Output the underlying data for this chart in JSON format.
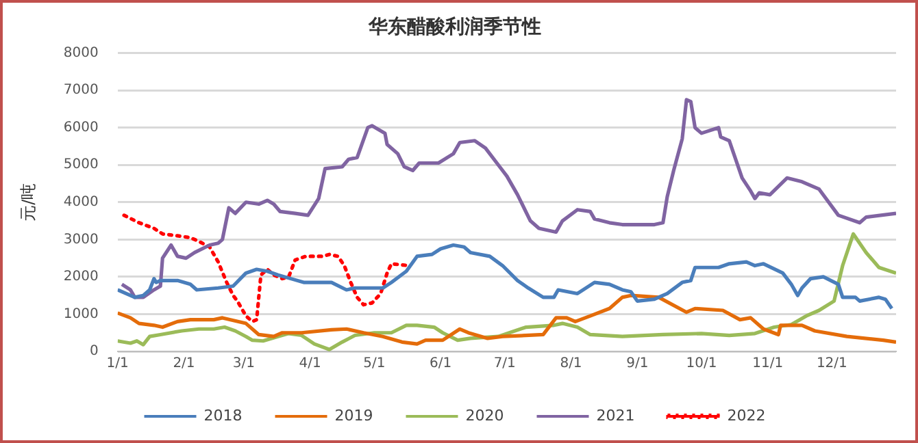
{
  "chart_data": {
    "type": "line",
    "title": "华东醋酸利润季节性",
    "ylabel": "元/吨",
    "xlim": [
      "--01-01",
      "--12-31"
    ],
    "xticks": [
      {
        "value": "--01-01",
        "label": "1/1"
      },
      {
        "value": "--02-01",
        "label": "2/1"
      },
      {
        "value": "--03-01",
        "label": "3/1"
      },
      {
        "value": "--04-01",
        "label": "4/1"
      },
      {
        "value": "--05-01",
        "label": "5/1"
      },
      {
        "value": "--06-01",
        "label": "6/1"
      },
      {
        "value": "--07-01",
        "label": "7/1"
      },
      {
        "value": "--08-01",
        "label": "8/1"
      },
      {
        "value": "--09-01",
        "label": "9/1"
      },
      {
        "value": "--10-01",
        "label": "10/1"
      },
      {
        "value": "--11-01",
        "label": "11/1"
      },
      {
        "value": "--12-01",
        "label": "12/1"
      }
    ],
    "ylim": [
      0,
      8000
    ],
    "yticks": [
      0,
      1000,
      2000,
      3000,
      4000,
      5000,
      6000,
      7000,
      8000
    ],
    "grid": "y",
    "legend": "bottom",
    "marker": "none",
    "series": [
      {
        "name": "2018",
        "color": "#4a7ebb",
        "line_style": "solid",
        "x": [
          "--01-01",
          "--01-09",
          "--01-13",
          "--01-16",
          "--01-18",
          "--01-19",
          "--01-21",
          "--01-29",
          "--02-04",
          "--02-07",
          "--02-17",
          "--02-24",
          "--03-02",
          "--03-07",
          "--03-12",
          "--03-17",
          "--03-23",
          "--03-29",
          "--04-11",
          "--04-18",
          "--04-22",
          "--05-05",
          "--05-09",
          "--05-16",
          "--05-21",
          "--05-28",
          "--06-01",
          "--06-07",
          "--06-12",
          "--06-15",
          "--06-24",
          "--06-30",
          "--07-07",
          "--07-12",
          "--07-19",
          "--07-24",
          "--07-26",
          "--08-04",
          "--08-12",
          "--08-19",
          "--08-25",
          "--08-29",
          "--09-01",
          "--09-09",
          "--09-15",
          "--09-22",
          "--09-26",
          "--09-28",
          "--10-09",
          "--10-14",
          "--10-22",
          "--10-26",
          "--10-30",
          "--11-08",
          "--11-12",
          "--11-15",
          "--11-17",
          "--11-21",
          "--11-27",
          "--12-04",
          "--12-06",
          "--12-12",
          "--12-14",
          "--12-23",
          "--12-26",
          "--12-29"
        ],
        "values": [
          1650,
          1450,
          1500,
          1650,
          1950,
          1850,
          1900,
          1900,
          1800,
          1650,
          1700,
          1750,
          2100,
          2200,
          2150,
          2050,
          1950,
          1850,
          1850,
          1650,
          1700,
          1700,
          1850,
          2150,
          2550,
          2600,
          2750,
          2850,
          2800,
          2650,
          2550,
          2300,
          1900,
          1700,
          1450,
          1450,
          1650,
          1550,
          1850,
          1800,
          1650,
          1600,
          1350,
          1400,
          1550,
          1850,
          1900,
          2250,
          2250,
          2350,
          2400,
          2300,
          2350,
          2100,
          1800,
          1500,
          1700,
          1950,
          2000,
          1800,
          1450,
          1450,
          1350,
          1450,
          1400,
          1150
        ]
      },
      {
        "name": "2019",
        "color": "#e46c0a",
        "line_style": "solid",
        "x": [
          "--01-01",
          "--01-07",
          "--01-11",
          "--01-18",
          "--01-22",
          "--01-29",
          "--02-04",
          "--02-15",
          "--02-19",
          "--03-02",
          "--03-08",
          "--03-15",
          "--03-19",
          "--03-28",
          "--04-11",
          "--04-18",
          "--04-26",
          "--05-05",
          "--05-14",
          "--05-21",
          "--05-25",
          "--06-02",
          "--06-10",
          "--06-14",
          "--06-23",
          "--06-30",
          "--07-19",
          "--07-25",
          "--07-30",
          "--08-03",
          "--08-10",
          "--08-19",
          "--08-25",
          "--08-29",
          "--09-11",
          "--09-24",
          "--09-28",
          "--10-11",
          "--10-19",
          "--10-24",
          "--10-30",
          "--11-06",
          "--11-07",
          "--11-17",
          "--11-23",
          "--12-08",
          "--12-25",
          "--12-31"
        ],
        "values": [
          1030,
          900,
          750,
          700,
          650,
          800,
          850,
          850,
          900,
          750,
          450,
          400,
          500,
          500,
          580,
          600,
          500,
          400,
          250,
          200,
          300,
          300,
          600,
          500,
          350,
          400,
          450,
          900,
          900,
          800,
          950,
          1150,
          1450,
          1500,
          1450,
          1050,
          1150,
          1100,
          850,
          900,
          600,
          450,
          700,
          700,
          550,
          400,
          300,
          250
        ]
      },
      {
        "name": "2020",
        "color": "#9bbb59",
        "line_style": "solid",
        "x": [
          "--01-01",
          "--01-07",
          "--01-10",
          "--01-13",
          "--01-16",
          "--01-21",
          "--01-31",
          "--02-08",
          "--02-15",
          "--02-20",
          "--02-25",
          "--03-02",
          "--03-05",
          "--03-10",
          "--03-17",
          "--03-22",
          "--03-28",
          "--04-03",
          "--04-10",
          "--04-16",
          "--04-22",
          "--05-01",
          "--05-09",
          "--05-16",
          "--05-21",
          "--05-29",
          "--06-02",
          "--06-09",
          "--06-15",
          "--06-28",
          "--07-11",
          "--07-24",
          "--07-28",
          "--08-04",
          "--08-10",
          "--08-25",
          "--09-13",
          "--10-01",
          "--10-14",
          "--10-26",
          "--11-04",
          "--11-12",
          "--11-19",
          "--11-25",
          "--12-02",
          "--12-06",
          "--12-11",
          "--12-17",
          "--12-23",
          "--12-31"
        ],
        "values": [
          280,
          220,
          280,
          180,
          400,
          450,
          550,
          600,
          600,
          650,
          550,
          400,
          300,
          280,
          400,
          480,
          430,
          200,
          50,
          250,
          430,
          500,
          500,
          700,
          700,
          650,
          500,
          300,
          350,
          400,
          650,
          700,
          750,
          650,
          450,
          400,
          450,
          480,
          430,
          480,
          650,
          720,
          950,
          1100,
          1350,
          2300,
          3150,
          2650,
          2250,
          2100
        ]
      },
      {
        "name": "2021",
        "color": "#8064a2",
        "line_style": "solid",
        "x": [
          "--01-03",
          "--01-07",
          "--01-09",
          "--01-13",
          "--01-18",
          "--01-21",
          "--01-22",
          "--01-26",
          "--01-29",
          "--02-02",
          "--02-06",
          "--02-13",
          "--02-17",
          "--02-19",
          "--02-22",
          "--02-25",
          "--03-02",
          "--03-08",
          "--03-12",
          "--03-15",
          "--03-18",
          "--03-25",
          "--03-31",
          "--04-05",
          "--04-08",
          "--04-16",
          "--04-19",
          "--04-23",
          "--04-28",
          "--04-30",
          "--05-06",
          "--05-07",
          "--05-12",
          "--05-15",
          "--05-19",
          "--05-22",
          "--05-31",
          "--06-07",
          "--06-10",
          "--06-17",
          "--06-22",
          "--06-28",
          "--07-02",
          "--07-07",
          "--07-13",
          "--07-17",
          "--07-25",
          "--07-28",
          "--08-04",
          "--08-10",
          "--08-12",
          "--08-19",
          "--08-25",
          "--09-09",
          "--09-13",
          "--09-15",
          "--09-18",
          "--09-22",
          "--09-24",
          "--09-26",
          "--09-28",
          "--10-01",
          "--10-09",
          "--10-10",
          "--10-14",
          "--10-20",
          "--10-24",
          "--10-26",
          "--10-28",
          "--11-02",
          "--11-10",
          "--11-17",
          "--11-25",
          "--12-04",
          "--12-14",
          "--12-17",
          "--12-31"
        ],
        "values": [
          1800,
          1650,
          1450,
          1450,
          1650,
          1750,
          2500,
          2850,
          2550,
          2500,
          2650,
          2850,
          2900,
          3000,
          3850,
          3700,
          4000,
          3950,
          4050,
          3950,
          3750,
          3700,
          3650,
          4100,
          4900,
          4950,
          5150,
          5200,
          6000,
          6050,
          5850,
          5550,
          5300,
          4950,
          4850,
          5050,
          5050,
          5300,
          5600,
          5650,
          5450,
          5000,
          4700,
          4200,
          3500,
          3300,
          3200,
          3500,
          3800,
          3750,
          3550,
          3450,
          3400,
          3400,
          3450,
          4150,
          4850,
          5700,
          6750,
          6700,
          6000,
          5850,
          6000,
          5750,
          5650,
          4650,
          4300,
          4100,
          4250,
          4200,
          4650,
          4550,
          4350,
          3650,
          3450,
          3600,
          3700
        ]
      },
      {
        "name": "2022",
        "color": "#ff0000",
        "line_style": "dotted",
        "x": [
          "--01-04",
          "--01-11",
          "--01-18",
          "--01-22",
          "--01-29",
          "--02-04",
          "--02-08",
          "--02-13",
          "--02-17",
          "--02-21",
          "--02-24",
          "--02-26",
          "--03-02",
          "--03-05",
          "--03-07",
          "--03-09",
          "--03-12",
          "--03-15",
          "--03-19",
          "--03-22",
          "--03-25",
          "--03-30",
          "--04-07",
          "--04-10",
          "--04-14",
          "--04-17",
          "--04-20",
          "--04-23",
          "--04-26",
          "--04-30",
          "--05-04",
          "--05-07",
          "--05-09",
          "--05-17"
        ],
        "values": [
          3650,
          3450,
          3300,
          3150,
          3100,
          3050,
          2950,
          2800,
          2400,
          1850,
          1500,
          1350,
          950,
          800,
          850,
          2050,
          2200,
          2050,
          1950,
          2000,
          2450,
          2550,
          2550,
          2600,
          2550,
          2300,
          1850,
          1450,
          1250,
          1300,
          1550,
          2100,
          2350,
          2300
        ]
      }
    ]
  }
}
